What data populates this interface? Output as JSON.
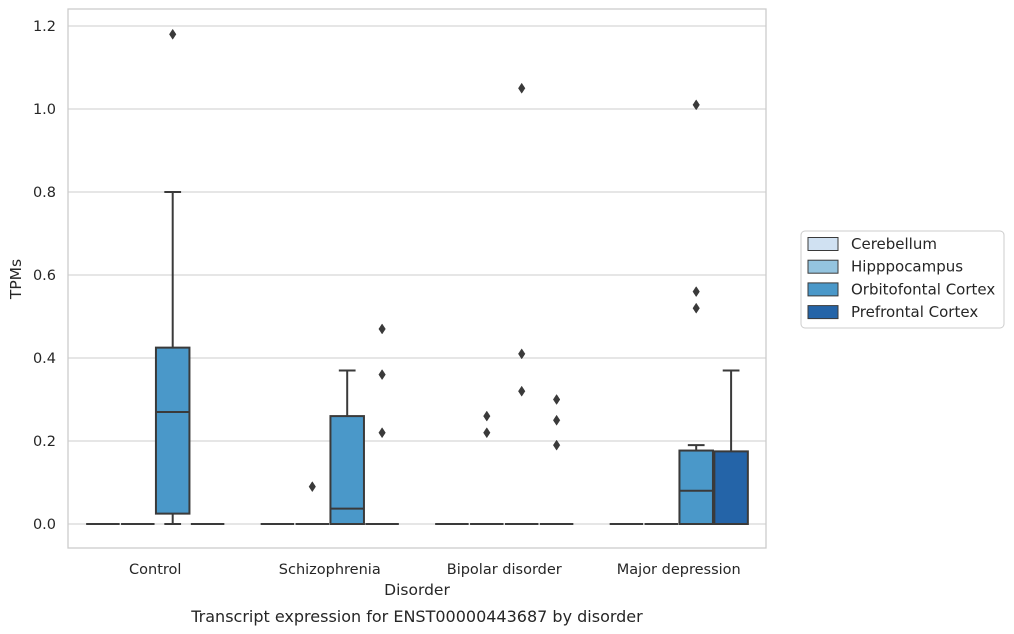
{
  "caption": "Transcript expression for ENST00000443687 by disorder",
  "chart_data": {
    "type": "box",
    "xlabel": "Disorder",
    "ylabel": "TPMs",
    "ylim": [
      -0.055,
      1.24
    ],
    "yticks": [
      0.0,
      0.2,
      0.4,
      0.6,
      0.8,
      1.0,
      1.2
    ],
    "ytick_labels": [
      "0.0",
      "0.2",
      "0.4",
      "0.6",
      "0.8",
      "1.0",
      "1.2"
    ],
    "grid": "horizontal",
    "legend_position": "right",
    "categories": [
      "Control",
      "Schizophrenia",
      "Bipolar disorder",
      "Major depression"
    ],
    "series": [
      {
        "name": "Cerebellum",
        "color": "#d0e1f2",
        "boxes": [
          {
            "q1": 0,
            "median": 0,
            "q3": 0,
            "whislo": 0,
            "whishi": 0,
            "fliers": []
          },
          {
            "q1": 0,
            "median": 0,
            "q3": 0,
            "whislo": 0,
            "whishi": 0,
            "fliers": []
          },
          {
            "q1": 0,
            "median": 0,
            "q3": 0,
            "whislo": 0,
            "whishi": 0,
            "fliers": []
          },
          {
            "q1": 0,
            "median": 0,
            "q3": 0,
            "whislo": 0,
            "whishi": 0,
            "fliers": []
          }
        ]
      },
      {
        "name": "Hipppocampus",
        "color": "#94c4df",
        "boxes": [
          {
            "q1": 0,
            "median": 0,
            "q3": 0,
            "whislo": 0,
            "whishi": 0,
            "fliers": []
          },
          {
            "q1": 0,
            "median": 0,
            "q3": 0,
            "whislo": 0,
            "whishi": 0,
            "fliers": [
              0.09
            ]
          },
          {
            "q1": 0,
            "median": 0,
            "q3": 0,
            "whislo": 0,
            "whishi": 0,
            "fliers": [
              0.22,
              0.26
            ]
          },
          {
            "q1": 0,
            "median": 0,
            "q3": 0,
            "whislo": 0,
            "whishi": 0,
            "fliers": []
          }
        ]
      },
      {
        "name": "Orbitofontal Cortex",
        "color": "#4a98c9",
        "boxes": [
          {
            "q1": 0.025,
            "median": 0.27,
            "q3": 0.425,
            "whislo": 0,
            "whishi": 0.8,
            "fliers": [
              1.18
            ]
          },
          {
            "q1": 0,
            "median": 0.037,
            "q3": 0.26,
            "whislo": 0,
            "whishi": 0.37,
            "fliers": []
          },
          {
            "q1": 0,
            "median": 0,
            "q3": 0,
            "whislo": 0,
            "whishi": 0,
            "fliers": [
              0.32,
              0.41,
              1.05
            ]
          },
          {
            "q1": 0,
            "median": 0.08,
            "q3": 0.177,
            "whislo": 0,
            "whishi": 0.19,
            "fliers": [
              0.52,
              0.56,
              1.01
            ]
          }
        ]
      },
      {
        "name": "Prefrontal Cortex",
        "color": "#2464a8",
        "boxes": [
          {
            "q1": 0,
            "median": 0,
            "q3": 0,
            "whislo": 0,
            "whishi": 0,
            "fliers": []
          },
          {
            "q1": 0,
            "median": 0,
            "q3": 0,
            "whislo": 0,
            "whishi": 0,
            "fliers": [
              0.22,
              0.36,
              0.47
            ]
          },
          {
            "q1": 0,
            "median": 0,
            "q3": 0,
            "whislo": 0,
            "whishi": 0,
            "fliers": [
              0.19,
              0.25,
              0.3
            ]
          },
          {
            "q1": 0,
            "median": 0,
            "q3": 0.175,
            "whislo": 0,
            "whishi": 0.37,
            "fliers": []
          }
        ]
      }
    ]
  }
}
